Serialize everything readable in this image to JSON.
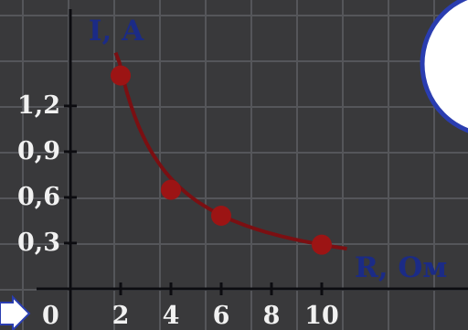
{
  "chart_data": {
    "type": "scatter",
    "title": "",
    "xlabel": "R, Ом",
    "ylabel": "I, A",
    "origin_label": "0",
    "x_ticks": [
      "2",
      "4",
      "6",
      "8",
      "10"
    ],
    "y_ticks": [
      "0,3",
      "0,6",
      "0,9",
      "1,2"
    ],
    "x_tick_values": [
      2,
      4,
      6,
      8,
      10
    ],
    "y_tick_values": [
      0.3,
      0.6,
      0.9,
      1.2
    ],
    "xlim": [
      0,
      11
    ],
    "ylim": [
      0,
      1.6
    ],
    "grid": true,
    "series": [
      {
        "points": [
          {
            "x": 2,
            "y": 1.4
          },
          {
            "x": 4,
            "y": 0.65
          },
          {
            "x": 6,
            "y": 0.48
          },
          {
            "x": 10,
            "y": 0.29
          }
        ],
        "curve": "hyperbola",
        "curve_x_range": [
          1.8,
          11
        ],
        "color": "#7b0f12",
        "marker_color": "#9c1414"
      }
    ]
  },
  "colors": {
    "background": "#39393b",
    "grid": "#55565a",
    "axis": "#0c0c10",
    "tick_text": "#f1f1f1",
    "axis_label": "#1b2b86",
    "decor_circle_fill": "#ffffff",
    "decor_circle_stroke": "#2a3db0"
  },
  "icons": {
    "corner_arrow": "arrow-right-icon",
    "corner_circle": "circle-decoration-icon"
  }
}
